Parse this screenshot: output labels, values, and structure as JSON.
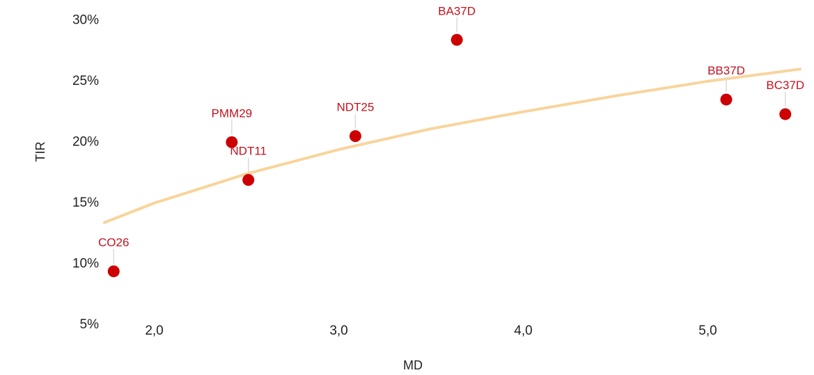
{
  "chart_data": {
    "type": "scatter",
    "title": "",
    "xlabel": "MD",
    "ylabel": "TIR",
    "xlim": [
      1.73,
      5.5
    ],
    "ylim": [
      4.5,
      31
    ],
    "x_ticks": [
      2.0,
      3.0,
      4.0,
      5.0
    ],
    "x_tick_labels": [
      "2,0",
      "3,0",
      "4,0",
      "5,0"
    ],
    "y_ticks": [
      5,
      10,
      15,
      20,
      25,
      30
    ],
    "y_tick_labels": [
      "5%",
      "10%",
      "15%",
      "20%",
      "25%",
      "30%"
    ],
    "grid": false,
    "points": [
      {
        "label": "CO26",
        "x": 1.78,
        "y": 9.3
      },
      {
        "label": "PMM29",
        "x": 2.42,
        "y": 19.9
      },
      {
        "label": "NDT11",
        "x": 2.51,
        "y": 16.8
      },
      {
        "label": "NDT25",
        "x": 3.09,
        "y": 20.4
      },
      {
        "label": "BA37D",
        "x": 3.64,
        "y": 28.3
      },
      {
        "label": "BB37D",
        "x": 5.1,
        "y": 23.4
      },
      {
        "label": "BC37D",
        "x": 5.42,
        "y": 22.2
      }
    ],
    "trendline": {
      "type": "logarithmic",
      "x": [
        1.73,
        2.0,
        2.5,
        3.0,
        3.5,
        4.0,
        4.5,
        5.0,
        5.5
      ],
      "y": [
        13.3,
        14.9,
        17.3,
        19.3,
        21.0,
        22.4,
        23.7,
        24.9,
        25.9
      ]
    },
    "colors": {
      "points": "#cc0000",
      "labels": "#c1121f",
      "trendline": "#f8d49b",
      "leaders": "#d9d9d9"
    }
  }
}
